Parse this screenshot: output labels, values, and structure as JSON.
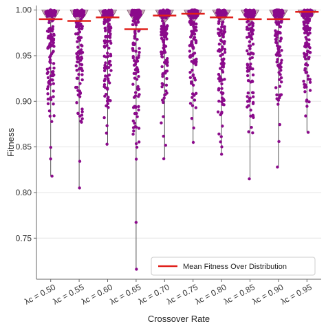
{
  "chart_data": {
    "type": "scatter",
    "subtype": "strip-violin",
    "xlabel": "Crossover Rate",
    "ylabel": "Fitness",
    "ylim": [
      0.705,
      1.005
    ],
    "yticks": [
      "0.75",
      "0.80",
      "0.85",
      "0.90",
      "0.95",
      "1.00"
    ],
    "ytick_values": [
      0.75,
      0.8,
      0.85,
      0.9,
      0.95,
      1.0
    ],
    "grid": true,
    "legend": {
      "position": "bottom-right",
      "entries": [
        "Mean Fitness Over Distribution"
      ]
    },
    "colors": {
      "points": "#8b0a8b",
      "violin": "#b98aa0",
      "mean": "#e0201b",
      "whisker": "#555555",
      "grid": "#e6e6e6",
      "axis": "#666666"
    },
    "groups": [
      {
        "label": "λc = 0.50",
        "min": 0.818,
        "max": 1.0,
        "mean": 0.99,
        "dense_from": 0.86
      },
      {
        "label": "λc = 0.55",
        "min": 0.805,
        "max": 1.0,
        "mean": 0.988,
        "dense_from": 0.87
      },
      {
        "label": "λc = 0.60",
        "min": 0.853,
        "max": 1.0,
        "mean": 0.992,
        "dense_from": 0.88
      },
      {
        "label": "λc = 0.65",
        "min": 0.716,
        "max": 1.0,
        "mean": 0.979,
        "dense_from": 0.83
      },
      {
        "label": "λc = 0.70",
        "min": 0.837,
        "max": 1.0,
        "mean": 0.994,
        "dense_from": 0.87
      },
      {
        "label": "λc = 0.75",
        "min": 0.855,
        "max": 1.0,
        "mean": 0.996,
        "dense_from": 0.89
      },
      {
        "label": "λc = 0.80",
        "min": 0.842,
        "max": 1.0,
        "mean": 0.992,
        "dense_from": 0.86
      },
      {
        "label": "λc = 0.85",
        "min": 0.815,
        "max": 1.0,
        "mean": 0.99,
        "dense_from": 0.86
      },
      {
        "label": "λc = 0.90",
        "min": 0.828,
        "max": 1.0,
        "mean": 0.99,
        "dense_from": 0.89
      },
      {
        "label": "λc = 0.95",
        "min": 0.866,
        "max": 1.0,
        "mean": 0.998,
        "dense_from": 0.89
      }
    ]
  }
}
